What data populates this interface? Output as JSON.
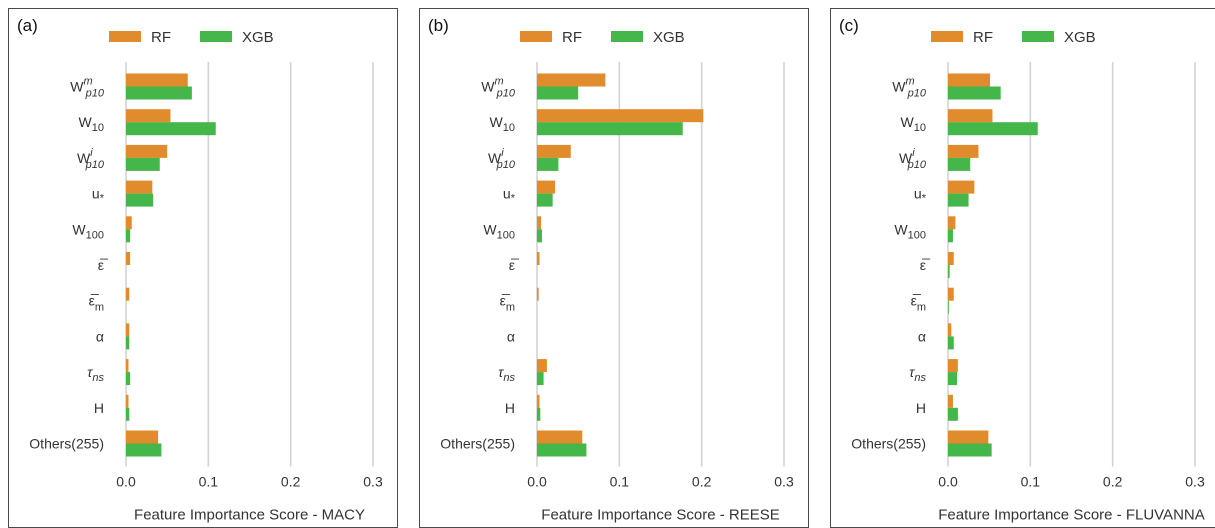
{
  "colors": {
    "RF": "#e08b2c",
    "XGB": "#45b649"
  },
  "chart_data": [
    {
      "type": "bar",
      "orientation": "horizontal",
      "panel": "(a)",
      "xlabel": "Feature Importance Score - MACY",
      "ylabel": "",
      "xlim": [
        0,
        0.3
      ],
      "xticks": [
        "0.0",
        "0.1",
        "0.2",
        "0.3"
      ],
      "grid": true,
      "legend_position": "top",
      "categories": [
        "W_p10^m",
        "W_10",
        "W_p10^i",
        "u_*",
        "W_100",
        "ε̅",
        "ε̅_m",
        "α",
        "τ_ns",
        "H",
        "Others(255)"
      ],
      "series": [
        {
          "name": "RF",
          "values": [
            0.075,
            0.054,
            0.05,
            0.032,
            0.007,
            0.005,
            0.004,
            0.004,
            0.003,
            0.003,
            0.039
          ]
        },
        {
          "name": "XGB",
          "values": [
            0.08,
            0.109,
            0.041,
            0.033,
            0.005,
            0.0,
            0.0,
            0.004,
            0.005,
            0.004,
            0.043
          ]
        }
      ]
    },
    {
      "type": "bar",
      "orientation": "horizontal",
      "panel": "(b)",
      "xlabel": "Feature Importance Score - REESE",
      "ylabel": "",
      "xlim": [
        0,
        0.3
      ],
      "xticks": [
        "0.0",
        "0.1",
        "0.2",
        "0.3"
      ],
      "grid": true,
      "legend_position": "top",
      "categories": [
        "W_p10^m",
        "W_10",
        "W_p10^i",
        "u_*",
        "W_100",
        "ε̅",
        "ε̅_m",
        "α",
        "τ_ns",
        "H",
        "Others(255)"
      ],
      "series": [
        {
          "name": "RF",
          "values": [
            0.083,
            0.202,
            0.041,
            0.022,
            0.005,
            0.003,
            0.002,
            0.0,
            0.012,
            0.003,
            0.055
          ]
        },
        {
          "name": "XGB",
          "values": [
            0.05,
            0.177,
            0.026,
            0.019,
            0.006,
            0.0,
            0.0,
            0.0,
            0.008,
            0.004,
            0.06
          ]
        }
      ]
    },
    {
      "type": "bar",
      "orientation": "horizontal",
      "panel": "(c)",
      "xlabel": "Feature Importance Score - FLUVANNA",
      "ylabel": "",
      "xlim": [
        0,
        0.3
      ],
      "xticks": [
        "0.0",
        "0.1",
        "0.2",
        "0.3"
      ],
      "grid": true,
      "legend_position": "top",
      "categories": [
        "W_p10^m",
        "W_10",
        "W_p10^i",
        "u_*",
        "W_100",
        "ε̅",
        "ε̅_m",
        "α",
        "τ_ns",
        "H",
        "Others(255)"
      ],
      "series": [
        {
          "name": "RF",
          "values": [
            0.051,
            0.054,
            0.037,
            0.032,
            0.009,
            0.007,
            0.007,
            0.004,
            0.012,
            0.006,
            0.049
          ]
        },
        {
          "name": "XGB",
          "values": [
            0.064,
            0.109,
            0.027,
            0.025,
            0.006,
            0.002,
            0.001,
            0.007,
            0.011,
            0.012,
            0.053
          ]
        }
      ]
    }
  ]
}
